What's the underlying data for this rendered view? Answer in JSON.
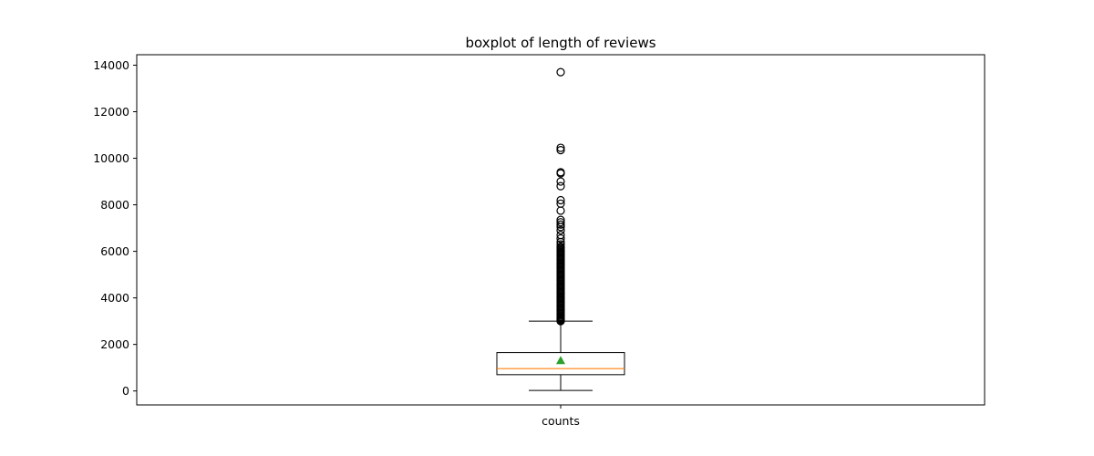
{
  "chart_data": {
    "type": "boxplot",
    "title": "boxplot of length of reviews",
    "xlabel": "",
    "ylabel": "",
    "categories": [
      "counts"
    ],
    "ylim": [
      -600,
      14450
    ],
    "yticks": [
      0,
      2000,
      4000,
      6000,
      8000,
      10000,
      12000,
      14000
    ],
    "grid": false,
    "legend": "none",
    "boxes": [
      {
        "category": "counts",
        "whisker_low": 20,
        "q1": 700,
        "median": 960,
        "q3": 1650,
        "whisker_high": 3000,
        "mean": 1310,
        "outliers": [
          3000,
          3040,
          3080,
          3120,
          3160,
          3200,
          3250,
          3300,
          3350,
          3400,
          3450,
          3500,
          3550,
          3600,
          3650,
          3700,
          3750,
          3800,
          3850,
          3900,
          3950,
          4000,
          4050,
          4100,
          4150,
          4200,
          4250,
          4300,
          4350,
          4400,
          4450,
          4500,
          4550,
          4600,
          4650,
          4700,
          4750,
          4800,
          4850,
          4900,
          4950,
          5000,
          5050,
          5100,
          5150,
          5200,
          5250,
          5300,
          5350,
          5400,
          5450,
          5500,
          5550,
          5600,
          5650,
          5700,
          5750,
          5800,
          5850,
          5900,
          5950,
          6000,
          6050,
          6100,
          6150,
          6200,
          6300,
          6400,
          6550,
          6700,
          6900,
          7050,
          7150,
          7250,
          7350,
          7750,
          8050,
          8200,
          8800,
          9000,
          9350,
          9400,
          10350,
          10450,
          13700
        ]
      }
    ],
    "colors": {
      "median": "#ff7f0e",
      "mean": "#2ca02c",
      "box": "#000000",
      "outlier": "#000000"
    }
  }
}
